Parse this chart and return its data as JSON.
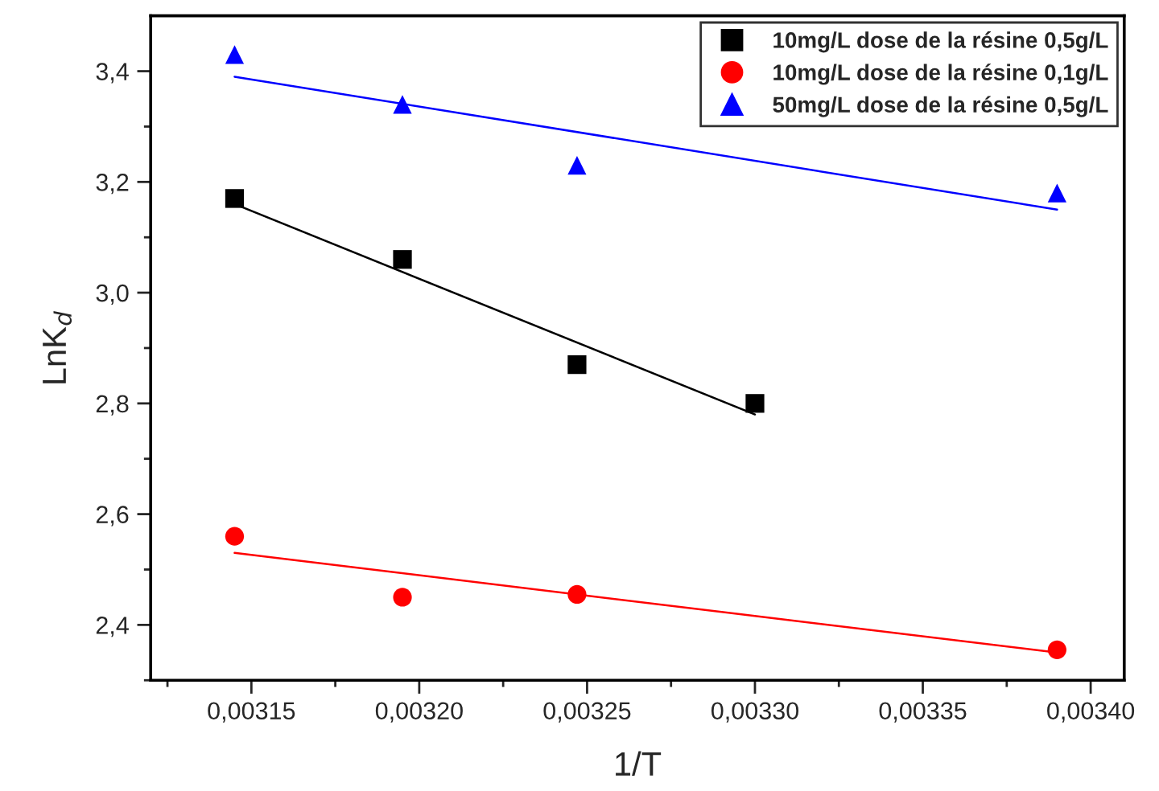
{
  "chart_data": {
    "type": "scatter",
    "xlabel": "1/T",
    "ylabel": "LnK$_{d}$",
    "xlim": [
      0.00312,
      0.00341
    ],
    "ylim": [
      2.3,
      3.5
    ],
    "xticks": [
      {
        "value": 0.003125,
        "label": null
      },
      {
        "value": 0.00315,
        "label": "0,00315"
      },
      {
        "value": 0.003175,
        "label": null
      },
      {
        "value": 0.0032,
        "label": "0,00320"
      },
      {
        "value": 0.003225,
        "label": null
      },
      {
        "value": 0.00325,
        "label": "0,00325"
      },
      {
        "value": 0.003275,
        "label": null
      },
      {
        "value": 0.0033,
        "label": "0,00330"
      },
      {
        "value": 0.003325,
        "label": null
      },
      {
        "value": 0.00335,
        "label": "0,00335"
      },
      {
        "value": 0.003375,
        "label": null
      },
      {
        "value": 0.0034,
        "label": "0,00340"
      }
    ],
    "yticks": [
      {
        "value": 2.3,
        "label": null
      },
      {
        "value": 2.4,
        "label": "2,4"
      },
      {
        "value": 2.5,
        "label": null
      },
      {
        "value": 2.6,
        "label": "2,6"
      },
      {
        "value": 2.7,
        "label": null
      },
      {
        "value": 2.8,
        "label": "2,8"
      },
      {
        "value": 2.9,
        "label": null
      },
      {
        "value": 3.0,
        "label": "3,0"
      },
      {
        "value": 3.1,
        "label": null
      },
      {
        "value": 3.2,
        "label": "3,2"
      },
      {
        "value": 3.3,
        "label": null
      },
      {
        "value": 3.4,
        "label": "3,4"
      }
    ],
    "grid": false,
    "legend": "top right",
    "series": [
      {
        "name": "10mg/L dose de la résine 0,5g/L",
        "color": "#000000",
        "marker": "square",
        "x": [
          0.003145,
          0.003195,
          0.003247,
          0.0033
        ],
        "values": [
          3.17,
          3.06,
          2.87,
          2.8
        ]
      },
      {
        "name": "10mg/L dose de la résine 0,1g/L",
        "color": "#ff0000",
        "marker": "circle",
        "x": [
          0.003145,
          0.003195,
          0.003247,
          0.00339
        ],
        "values": [
          2.56,
          2.45,
          2.455,
          2.355
        ]
      },
      {
        "name": "50mg/L dose de la résine 0,5g/L",
        "color": "#0000ff",
        "marker": "triangle",
        "x": [
          0.003145,
          0.003195,
          0.003247,
          0.00339
        ],
        "values": [
          3.43,
          3.34,
          3.23,
          3.18
        ]
      },
      {
        "type": "line",
        "color": "#000000",
        "x": [
          0.003145,
          0.0033
        ],
        "values": [
          3.16,
          2.78
        ]
      },
      {
        "type": "line",
        "color": "#ff0000",
        "x": [
          0.003145,
          0.00339
        ],
        "values": [
          2.53,
          2.35
        ]
      },
      {
        "type": "line",
        "color": "#0000ff",
        "x": [
          0.003145,
          0.00339
        ],
        "values": [
          3.39,
          3.15
        ]
      }
    ]
  }
}
